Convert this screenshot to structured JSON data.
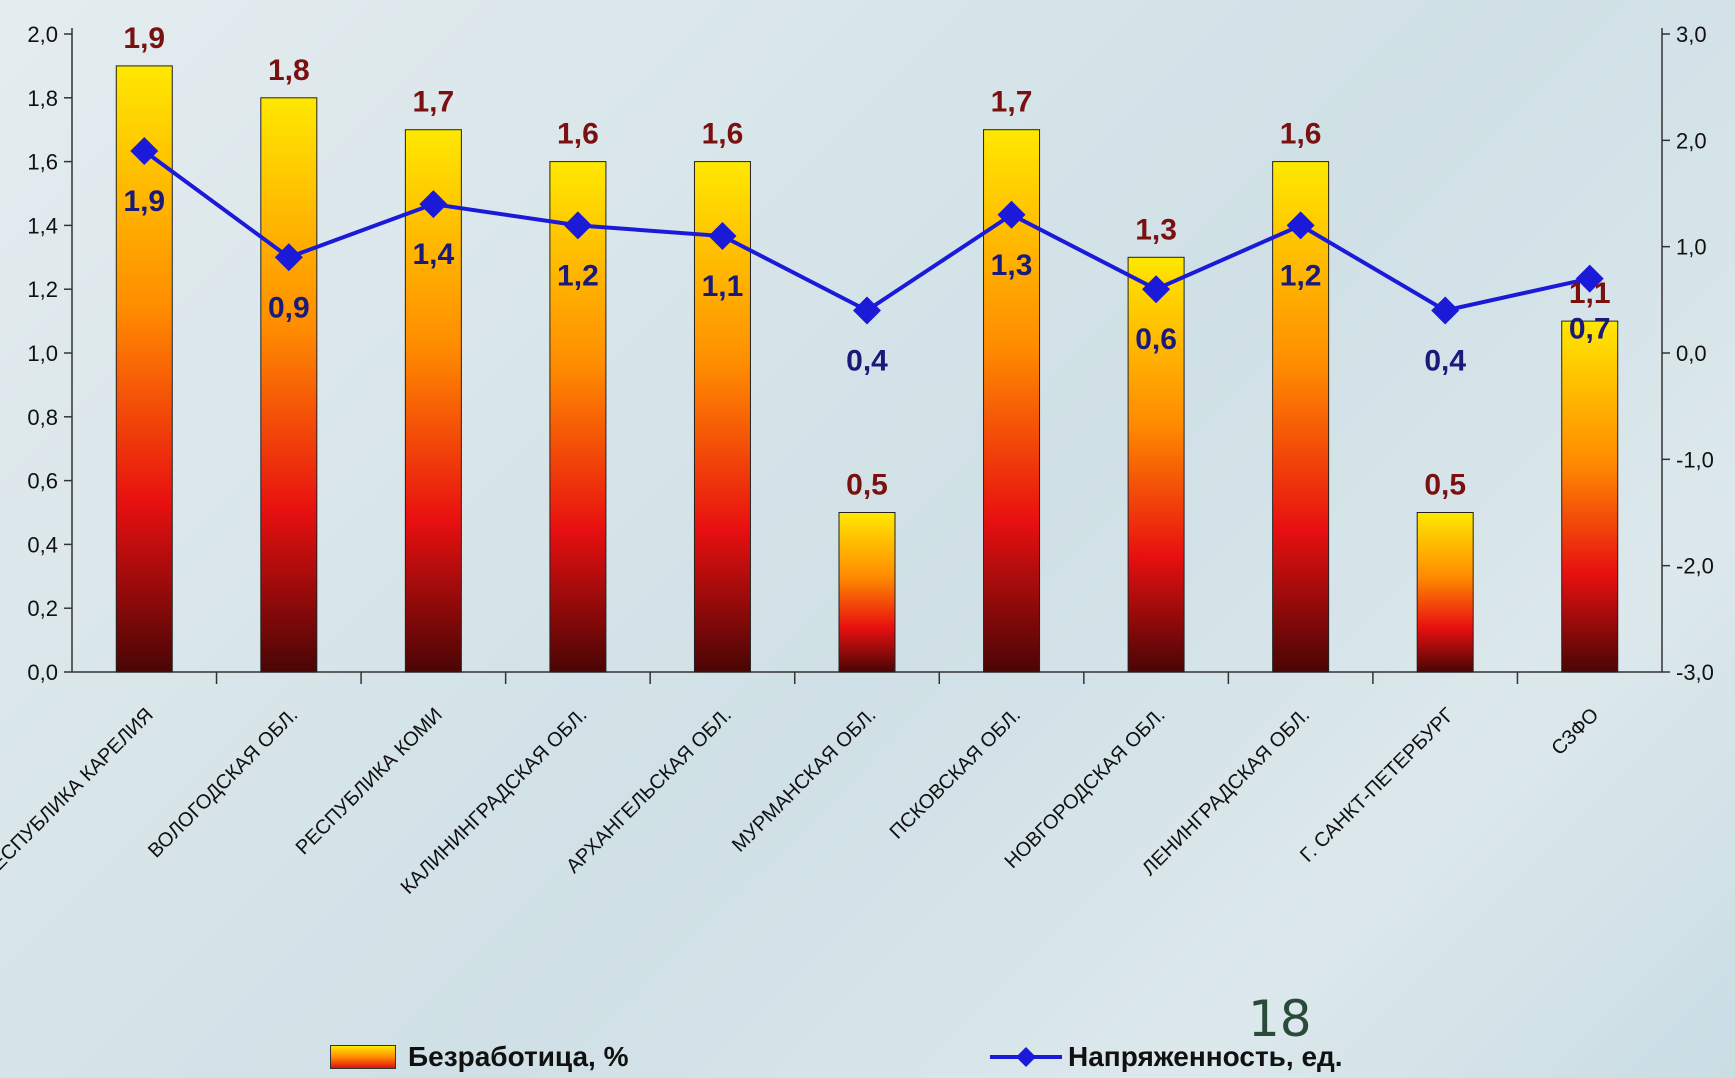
{
  "chart_data": {
    "type": "bar",
    "categories": [
      "РЕСПУБЛИКА КАРЕЛИЯ",
      "ВОЛОГОДСКАЯ ОБЛ.",
      "РЕСПУБЛИКА КОМИ",
      "КАЛИНИНГРАДСКАЯ ОБЛ.",
      "АРХАНГЕЛЬСКАЯ ОБЛ.",
      "МУРМАНСКАЯ ОБЛ.",
      "ПСКОВСКАЯ ОБЛ.",
      "НОВГОРОДСКАЯ ОБЛ.",
      "ЛЕНИНГРАДСКАЯ ОБЛ.",
      "Г. САНКТ-ПЕТЕРБУРГ",
      "СЗФО"
    ],
    "series": [
      {
        "name": "Безработица, %",
        "type": "bar",
        "axis": "left",
        "values": [
          1.9,
          1.8,
          1.7,
          1.6,
          1.6,
          0.5,
          1.7,
          1.3,
          1.6,
          0.5,
          1.1
        ],
        "labels": [
          "1,9",
          "1,8",
          "1,7",
          "1,6",
          "1,6",
          "0,5",
          "1,7",
          "1,3",
          "1,6",
          "0,5",
          "1,1"
        ],
        "colors": {
          "top": "#ffe800",
          "middle": "#ff8c00",
          "low": "#e81010",
          "bottom": "#4a0505"
        }
      },
      {
        "name": "Напряженность, ед.",
        "type": "line",
        "axis": "right",
        "values": [
          1.9,
          0.9,
          1.4,
          1.2,
          1.1,
          0.4,
          1.3,
          0.6,
          1.2,
          0.4,
          0.7
        ],
        "labels": [
          "1,9",
          "0,9",
          "1,4",
          "1,2",
          "1,1",
          "0,4",
          "1,3",
          "0,6",
          "1,2",
          "0,4",
          "0,7"
        ],
        "color": "#1a1ad8"
      }
    ],
    "y_left": {
      "range": [
        0,
        2.0
      ],
      "ticks": [
        "0,0",
        "0,2",
        "0,4",
        "0,6",
        "0,8",
        "1,0",
        "1,2",
        "1,4",
        "1,6",
        "1,8",
        "2,0"
      ]
    },
    "y_right": {
      "range": [
        -3.0,
        3.0
      ],
      "ticks": [
        "-3,0",
        "-2,0",
        "-1,0",
        "0,0",
        "1,0",
        "2,0",
        "3,0"
      ]
    },
    "legend_placement": "bottom",
    "grid": false
  },
  "legend": {
    "bar_label": "Безработица, %",
    "line_label": "Напряженность, ед."
  },
  "page_number": "18"
}
